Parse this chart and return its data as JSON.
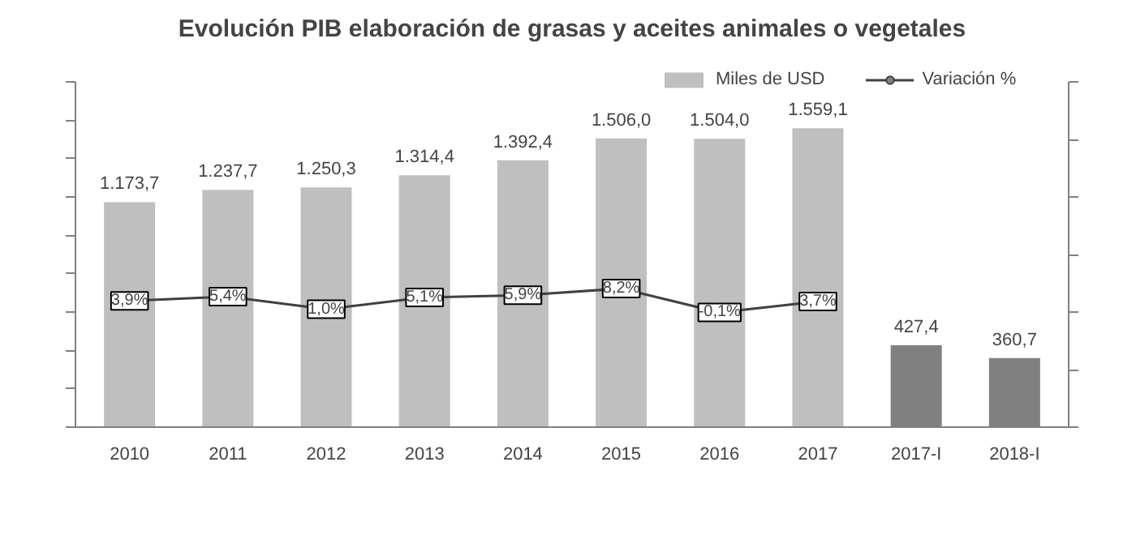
{
  "chart_data": {
    "type": "bar",
    "title": "Evolución PIB elaboración de grasas y aceites animales o vegetales",
    "categories": [
      "2010",
      "2011",
      "2012",
      "2013",
      "2014",
      "2015",
      "2016",
      "2017",
      "2017-I",
      "2018-I"
    ],
    "series": [
      {
        "name": "Miles de USD",
        "color": "#bfbfbf",
        "colors": [
          "#bfbfbf",
          "#bfbfbf",
          "#bfbfbf",
          "#bfbfbf",
          "#bfbfbf",
          "#bfbfbf",
          "#bfbfbf",
          "#bfbfbf",
          "#808080",
          "#808080"
        ],
        "values": [
          1173.7,
          1237.7,
          1250.3,
          1314.4,
          1392.4,
          1506.0,
          1504.0,
          1559.1,
          427.4,
          360.7
        ],
        "value_labels": [
          "1.173,7",
          "1.237,7",
          "1.250,3",
          "1.314,4",
          "1.392,4",
          "1.506,0",
          "1.504,0",
          "1.559,1",
          "427,4",
          "360,7"
        ]
      },
      {
        "name": "Variación %",
        "type": "line",
        "axis": "y2",
        "color": "#404040",
        "values": [
          3.9,
          5.4,
          1.0,
          5.1,
          5.9,
          8.2,
          -0.1,
          3.7,
          null,
          null
        ],
        "value_labels": [
          "3,9%",
          "5,4%",
          "1,0%",
          "5,1%",
          "5,9%",
          "8,2%",
          "-0,1%",
          "3,7%",
          null,
          null
        ]
      }
    ],
    "ylim": [
      0,
      1800
    ],
    "yticks": [
      {
        "value": 0,
        "label": null
      },
      {
        "value": 200,
        "label": null
      },
      {
        "value": 400,
        "label": null
      },
      {
        "value": 600,
        "label": null
      },
      {
        "value": 800,
        "label": null
      },
      {
        "value": 1000,
        "label": null
      },
      {
        "value": 1200,
        "label": null
      },
      {
        "value": 1400,
        "label": null
      },
      {
        "value": 1600,
        "label": null
      },
      {
        "value": 1800,
        "label": null
      }
    ],
    "y2lim": [
      -40,
      80
    ],
    "y2ticks": [
      {
        "value": -40,
        "label": null
      },
      {
        "value": -20,
        "label": null
      },
      {
        "value": 0,
        "label": null
      },
      {
        "value": 20,
        "label": null
      },
      {
        "value": 40,
        "label": null
      },
      {
        "value": 60,
        "label": null
      },
      {
        "value": 80,
        "label": null
      }
    ],
    "tick_labels": "x",
    "grid": false,
    "legend": "top right",
    "marker": "circle",
    "line_style": "solid"
  }
}
